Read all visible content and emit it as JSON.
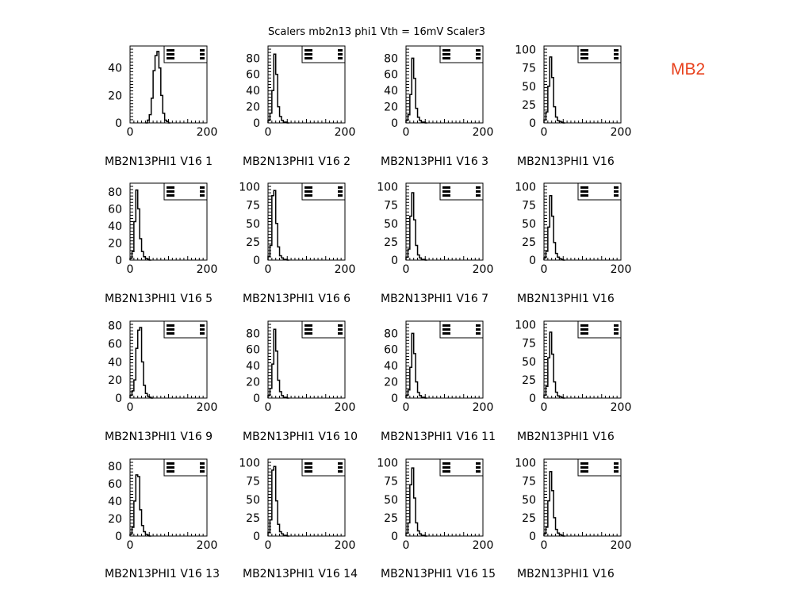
{
  "page": {
    "title": "Scalers mb2n13 phi1 Vth = 16mV Scaler3",
    "corner_label": "MB2",
    "corner_color": "#e8401c"
  },
  "chart_data": [
    {
      "type": "histogram",
      "caption": "MB2N13PHI1  V16  1",
      "x_ticks": [
        0,
        200
      ],
      "y_ticks": [
        0,
        20,
        40
      ],
      "xlim": [
        0,
        200
      ],
      "ylim": [
        0,
        56
      ],
      "x": [
        40,
        45,
        50,
        55,
        60,
        65,
        70,
        75,
        80,
        85,
        90,
        95,
        100
      ],
      "values": [
        0,
        2,
        6,
        18,
        38,
        49,
        52,
        40,
        20,
        7,
        2,
        1,
        0
      ]
    },
    {
      "type": "histogram",
      "caption": "MB2N13PHI1  V16  2",
      "x_ticks": [
        0,
        200
      ],
      "y_ticks": [
        0,
        20,
        40,
        60,
        80
      ],
      "xlim": [
        0,
        200
      ],
      "ylim": [
        0,
        95
      ],
      "x": [
        0,
        5,
        10,
        15,
        20,
        25,
        30,
        35,
        40,
        45,
        50
      ],
      "values": [
        3,
        12,
        40,
        85,
        60,
        20,
        8,
        3,
        1,
        1,
        0
      ]
    },
    {
      "type": "histogram",
      "caption": "MB2N13PHI1  V16  3",
      "x_ticks": [
        0,
        200
      ],
      "y_ticks": [
        0,
        20,
        40,
        60,
        80
      ],
      "xlim": [
        0,
        200
      ],
      "ylim": [
        0,
        95
      ],
      "x": [
        0,
        5,
        10,
        15,
        20,
        25,
        30,
        35,
        40,
        45,
        50
      ],
      "values": [
        3,
        10,
        35,
        80,
        55,
        18,
        7,
        3,
        1,
        1,
        0
      ]
    },
    {
      "type": "histogram",
      "caption": "MB2N13PHI1  V16",
      "x_ticks": [
        0,
        200
      ],
      "y_ticks": [
        0,
        25,
        50,
        75,
        100
      ],
      "xlim": [
        0,
        200
      ],
      "ylim": [
        0,
        105
      ],
      "x": [
        0,
        5,
        10,
        15,
        20,
        25,
        30,
        35,
        40,
        45,
        50
      ],
      "values": [
        4,
        15,
        50,
        90,
        62,
        22,
        8,
        3,
        2,
        1,
        0
      ]
    },
    {
      "type": "histogram",
      "caption": "MB2N13PHI1  V16  5",
      "x_ticks": [
        0,
        200
      ],
      "y_ticks": [
        0,
        20,
        40,
        60,
        80
      ],
      "xlim": [
        0,
        200
      ],
      "ylim": [
        0,
        90
      ],
      "x": [
        0,
        5,
        10,
        15,
        20,
        25,
        30,
        35,
        40,
        45,
        50
      ],
      "values": [
        2,
        10,
        45,
        82,
        60,
        25,
        10,
        4,
        2,
        1,
        0
      ]
    },
    {
      "type": "histogram",
      "caption": "MB2N13PHI1  V16  6",
      "x_ticks": [
        0,
        200
      ],
      "y_ticks": [
        0,
        25,
        50,
        75,
        100
      ],
      "xlim": [
        0,
        200
      ],
      "ylim": [
        0,
        105
      ],
      "x": [
        0,
        5,
        10,
        15,
        20,
        25,
        30,
        35,
        40,
        45,
        50
      ],
      "values": [
        5,
        20,
        88,
        95,
        50,
        18,
        6,
        3,
        1,
        1,
        0
      ]
    },
    {
      "type": "histogram",
      "caption": "MB2N13PHI1  V16  7",
      "x_ticks": [
        0,
        200
      ],
      "y_ticks": [
        0,
        25,
        50,
        75,
        100
      ],
      "xlim": [
        0,
        200
      ],
      "ylim": [
        0,
        105
      ],
      "x": [
        0,
        5,
        10,
        15,
        20,
        25,
        30,
        35,
        40,
        45,
        50
      ],
      "values": [
        4,
        15,
        60,
        92,
        55,
        20,
        7,
        3,
        1,
        1,
        0
      ]
    },
    {
      "type": "histogram",
      "caption": "MB2N13PHI1  V16",
      "x_ticks": [
        0,
        200
      ],
      "y_ticks": [
        0,
        25,
        50,
        75,
        100
      ],
      "xlim": [
        0,
        200
      ],
      "ylim": [
        0,
        105
      ],
      "x": [
        0,
        5,
        10,
        15,
        20,
        25,
        30,
        35,
        40,
        45,
        50
      ],
      "values": [
        3,
        12,
        45,
        88,
        60,
        24,
        9,
        4,
        2,
        1,
        0
      ]
    },
    {
      "type": "histogram",
      "caption": "MB2N13PHI1  V16  9",
      "x_ticks": [
        0,
        200
      ],
      "y_ticks": [
        0,
        20,
        40,
        60,
        80
      ],
      "xlim": [
        0,
        200
      ],
      "ylim": [
        0,
        85
      ],
      "x": [
        0,
        5,
        10,
        15,
        20,
        25,
        30,
        35,
        40,
        45,
        50,
        55
      ],
      "values": [
        3,
        8,
        20,
        55,
        75,
        78,
        40,
        14,
        5,
        2,
        1,
        0
      ]
    },
    {
      "type": "histogram",
      "caption": "MB2N13PHI1  V16 10",
      "x_ticks": [
        0,
        200
      ],
      "y_ticks": [
        0,
        20,
        40,
        60,
        80
      ],
      "xlim": [
        0,
        200
      ],
      "ylim": [
        0,
        95
      ],
      "x": [
        0,
        5,
        10,
        15,
        20,
        25,
        30,
        35,
        40,
        45,
        50
      ],
      "values": [
        3,
        12,
        42,
        85,
        58,
        22,
        8,
        3,
        1,
        1,
        0
      ]
    },
    {
      "type": "histogram",
      "caption": "MB2N13PHI1  V16 11",
      "x_ticks": [
        0,
        200
      ],
      "y_ticks": [
        0,
        20,
        40,
        60,
        80
      ],
      "xlim": [
        0,
        200
      ],
      "ylim": [
        0,
        95
      ],
      "x": [
        0,
        5,
        10,
        15,
        20,
        25,
        30,
        35,
        40,
        45,
        50
      ],
      "values": [
        3,
        10,
        38,
        80,
        55,
        20,
        7,
        3,
        1,
        1,
        0
      ]
    },
    {
      "type": "histogram",
      "caption": "MB2N13PHI1  V16",
      "x_ticks": [
        0,
        200
      ],
      "y_ticks": [
        0,
        25,
        50,
        75,
        100
      ],
      "xlim": [
        0,
        200
      ],
      "ylim": [
        0,
        105
      ],
      "x": [
        0,
        5,
        10,
        15,
        20,
        25,
        30,
        35,
        40,
        45,
        50
      ],
      "values": [
        4,
        16,
        55,
        90,
        60,
        22,
        8,
        3,
        2,
        1,
        0
      ]
    },
    {
      "type": "histogram",
      "caption": "MB2N13PHI1  V16 13",
      "x_ticks": [
        0,
        200
      ],
      "y_ticks": [
        0,
        20,
        40,
        60,
        80
      ],
      "xlim": [
        0,
        200
      ],
      "ylim": [
        0,
        88
      ],
      "x": [
        0,
        5,
        10,
        15,
        20,
        25,
        30,
        35,
        40,
        45,
        50
      ],
      "values": [
        2,
        10,
        40,
        70,
        68,
        30,
        12,
        5,
        2,
        1,
        0
      ]
    },
    {
      "type": "histogram",
      "caption": "MB2N13PHI1  V16 14",
      "x_ticks": [
        0,
        200
      ],
      "y_ticks": [
        0,
        25,
        50,
        75,
        100
      ],
      "xlim": [
        0,
        200
      ],
      "ylim": [
        0,
        105
      ],
      "x": [
        0,
        5,
        10,
        15,
        20,
        25,
        30,
        35,
        40,
        45,
        50
      ],
      "values": [
        5,
        22,
        90,
        95,
        48,
        16,
        6,
        3,
        1,
        1,
        0
      ]
    },
    {
      "type": "histogram",
      "caption": "MB2N13PHI1  V16 15",
      "x_ticks": [
        0,
        200
      ],
      "y_ticks": [
        0,
        25,
        50,
        75,
        100
      ],
      "xlim": [
        0,
        200
      ],
      "ylim": [
        0,
        105
      ],
      "x": [
        0,
        5,
        10,
        15,
        20,
        25,
        30,
        35,
        40,
        45,
        50
      ],
      "values": [
        4,
        18,
        70,
        93,
        52,
        18,
        7,
        3,
        1,
        1,
        0
      ]
    },
    {
      "type": "histogram",
      "caption": "MB2N13PHI1  V16",
      "x_ticks": [
        0,
        200
      ],
      "y_ticks": [
        0,
        25,
        50,
        75,
        100
      ],
      "xlim": [
        0,
        200
      ],
      "ylim": [
        0,
        105
      ],
      "x": [
        0,
        5,
        10,
        15,
        20,
        25,
        30,
        35,
        40,
        45,
        50
      ],
      "values": [
        3,
        12,
        48,
        88,
        62,
        25,
        9,
        4,
        2,
        1,
        0
      ]
    }
  ]
}
